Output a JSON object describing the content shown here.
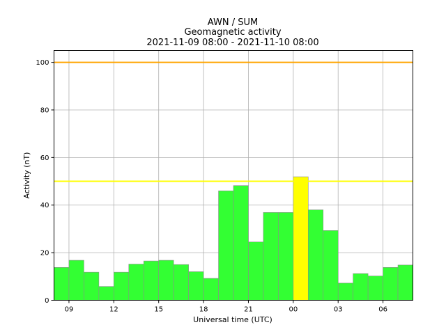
{
  "chart_data": {
    "type": "bar",
    "title_lines": [
      "AWN / SUM",
      "Geomagnetic activity",
      "2021-11-09 08:00 - 2021-11-10 08:00"
    ],
    "xlabel": "Universal time (UTC)",
    "ylabel": "Activity (nT)",
    "ylim": [
      0,
      105
    ],
    "yticks": [
      0,
      20,
      40,
      60,
      80,
      100
    ],
    "x_range_hours": [
      0,
      24
    ],
    "xticks": [
      {
        "hour": 1,
        "label": "09"
      },
      {
        "hour": 4,
        "label": "12"
      },
      {
        "hour": 7,
        "label": "15"
      },
      {
        "hour": 10,
        "label": "18"
      },
      {
        "hour": 13,
        "label": "21"
      },
      {
        "hour": 16,
        "label": "00"
      },
      {
        "hour": 19,
        "label": "03"
      },
      {
        "hour": 22,
        "label": "06"
      }
    ],
    "grid": true,
    "values": [
      13.8,
      16.8,
      11.8,
      5.8,
      11.8,
      15.2,
      16.5,
      16.8,
      15.0,
      12.0,
      9.2,
      46.0,
      48.2,
      24.5,
      36.9,
      36.9,
      51.9,
      38.0,
      29.3,
      7.2,
      11.2,
      10.2,
      13.8,
      14.8
    ],
    "bar_colors": [
      "#33ff33",
      "#33ff33",
      "#33ff33",
      "#33ff33",
      "#33ff33",
      "#33ff33",
      "#33ff33",
      "#33ff33",
      "#33ff33",
      "#33ff33",
      "#33ff33",
      "#33ff33",
      "#33ff33",
      "#33ff33",
      "#33ff33",
      "#33ff33",
      "#ffff00",
      "#33ff33",
      "#33ff33",
      "#33ff33",
      "#33ff33",
      "#33ff33",
      "#33ff33",
      "#33ff33"
    ],
    "threshold_lines": [
      {
        "value": 100,
        "color": "#ffa500"
      },
      {
        "value": 50,
        "color": "#ffff00"
      }
    ],
    "bar_edge_color": "#8c8c8c"
  }
}
